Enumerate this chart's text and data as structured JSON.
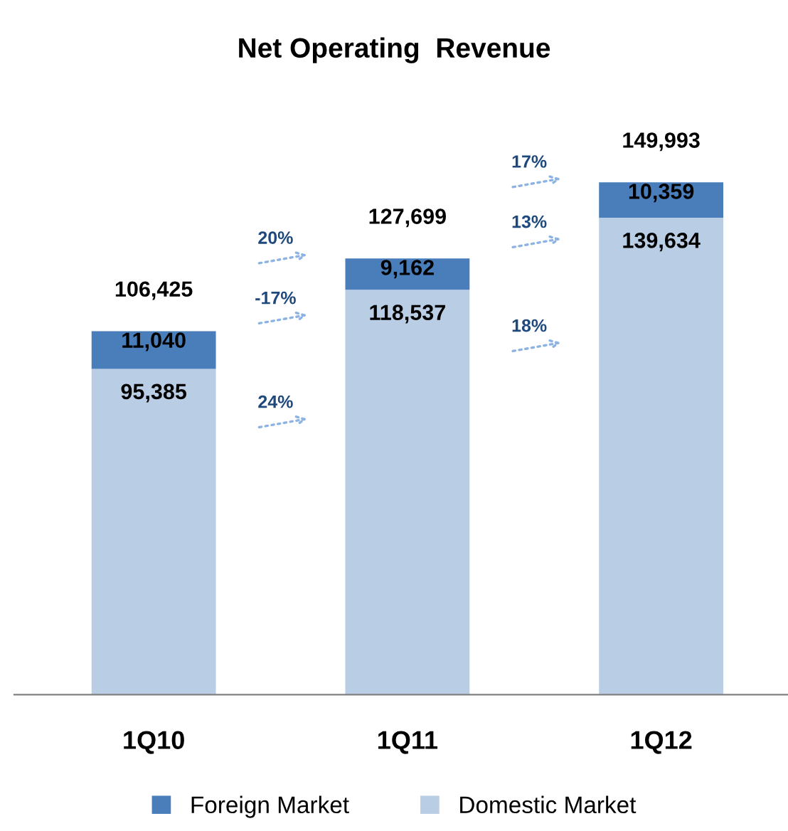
{
  "chart_data": {
    "type": "bar",
    "title": "Net Operating  Revenue",
    "categories": [
      "1Q10",
      "1Q11",
      "1Q12"
    ],
    "stacked": true,
    "legend": "bottom",
    "series": [
      {
        "name": "Domestic Market",
        "color": "#b9cde5",
        "values": [
          95385,
          118537,
          139634
        ],
        "value_labels": [
          "95,385",
          "118,537",
          "139,634"
        ]
      },
      {
        "name": "Foreign Market",
        "color": "#4a7ebb",
        "values": [
          11040,
          9162,
          10359
        ],
        "value_labels": [
          "11,040",
          "9,162",
          "10,359"
        ]
      }
    ],
    "totals": [
      "106,425",
      "127,699",
      "149,993"
    ],
    "annotations": [
      "20%",
      "-17%",
      "24%",
      "17%",
      "13%",
      "18%"
    ]
  }
}
